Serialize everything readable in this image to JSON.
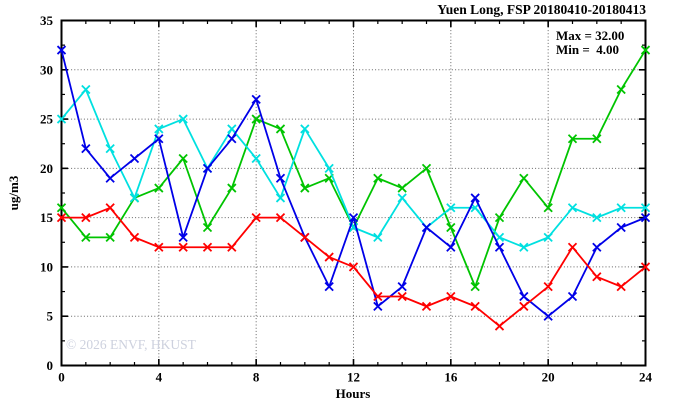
{
  "chart_data": {
    "type": "line",
    "title": "Yuen Long, FSP 20180410-20180413",
    "xlabel": "Hours",
    "ylabel": "ug/m3",
    "xlim": [
      0,
      24
    ],
    "ylim": [
      0,
      35
    ],
    "x_major_ticks": [
      0,
      4,
      8,
      12,
      16,
      20,
      24
    ],
    "x_minor_step": 1,
    "y_major_ticks": [
      0,
      5,
      10,
      15,
      20,
      25,
      30,
      35
    ],
    "y_minor_step": 2.5,
    "grid": "dotted-at-major-ticks",
    "legend": {
      "position": "top-right-inside",
      "max_label": "Max = 32.00",
      "min_label": "Min =  4.00"
    },
    "watermark": "© 2026 ENVF, HKUST",
    "marker": "x-cross",
    "hours": [
      0,
      1,
      2,
      3,
      4,
      5,
      6,
      7,
      8,
      9,
      10,
      11,
      12,
      13,
      14,
      15,
      16,
      17,
      18,
      19,
      20,
      21,
      22,
      23,
      24
    ],
    "series": [
      {
        "name": "green",
        "color": "#00c400",
        "values": [
          16,
          13,
          13,
          17,
          18,
          21,
          14,
          18,
          25,
          24,
          18,
          19,
          14,
          19,
          18,
          20,
          14,
          8,
          15,
          19,
          16,
          23,
          23,
          28,
          32
        ]
      },
      {
        "name": "cyan",
        "color": "#00e0e0",
        "values": [
          25,
          28,
          22,
          17,
          24,
          25,
          20,
          24,
          21,
          17,
          24,
          20,
          14,
          13,
          17,
          14,
          16,
          16,
          13,
          12,
          13,
          16,
          15,
          16,
          16
        ]
      },
      {
        "name": "blue",
        "color": "#0000e8",
        "values": [
          32,
          22,
          19,
          21,
          23,
          13,
          20,
          23,
          27,
          19,
          13,
          8,
          15,
          6,
          8,
          14,
          12,
          17,
          12,
          7,
          5,
          7,
          12,
          14,
          15
        ]
      },
      {
        "name": "red",
        "color": "#ff0000",
        "values": [
          15,
          15,
          16,
          13,
          12,
          12,
          12,
          12,
          15,
          15,
          13,
          11,
          10,
          7,
          7,
          6,
          7,
          6,
          4,
          6,
          8,
          12,
          9,
          8,
          10
        ]
      }
    ]
  }
}
